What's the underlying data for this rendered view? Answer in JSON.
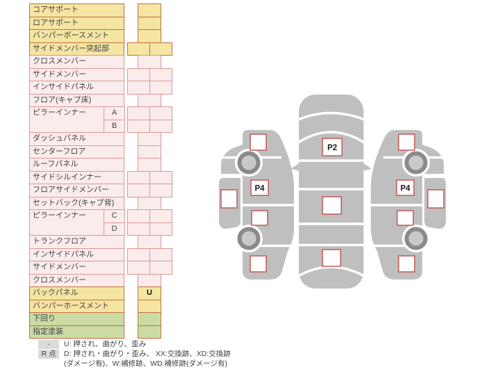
{
  "table": {
    "rows": [
      {
        "label": "コアサポート",
        "color": "yellow",
        "cells": "single",
        "value": ""
      },
      {
        "label": "ロアサポート",
        "color": "yellow",
        "cells": "single",
        "value": ""
      },
      {
        "label": "バンパーボースメント",
        "color": "yellow",
        "cells": "single",
        "value": ""
      },
      {
        "label": "サイドメンバー突起部",
        "color": "yellow",
        "cells": "double",
        "value": ""
      },
      {
        "label": "クロスメンバー",
        "color": "pink",
        "cells": "single",
        "value": ""
      },
      {
        "label": "サイドメンバー",
        "color": "pink",
        "cells": "double",
        "value": ""
      },
      {
        "label": "インサイドパネル",
        "color": "pink",
        "cells": "double",
        "value": ""
      },
      {
        "label": "フロア(キャブ床)",
        "color": "pink",
        "cells": "single",
        "value": ""
      },
      {
        "label": "ピラーインナー",
        "sub": "A",
        "span": 2,
        "color": "pink",
        "cells": "double",
        "value": ""
      },
      {
        "merged": true,
        "sub": "B",
        "color": "pink",
        "cells": "double",
        "value": ""
      },
      {
        "label": "ダッシュパネル",
        "color": "pink",
        "cells": "single",
        "value": ""
      },
      {
        "label": "センターフロア",
        "color": "pink",
        "cells": "single",
        "value": ""
      },
      {
        "label": "ルーフパネル",
        "color": "pink",
        "cells": "single",
        "value": ""
      },
      {
        "label": "サイドシルインナー",
        "color": "pink",
        "cells": "double",
        "value": ""
      },
      {
        "label": "フロアサイドメンバー",
        "color": "pink",
        "cells": "double",
        "value": ""
      },
      {
        "label": "セットバック(キャブ背)",
        "color": "pink",
        "cells": "single",
        "value": ""
      },
      {
        "label": "ピラーインナー",
        "sub": "C",
        "span": 2,
        "color": "pink",
        "cells": "double",
        "value": ""
      },
      {
        "merged": true,
        "sub": "D",
        "color": "pink",
        "cells": "double",
        "value": ""
      },
      {
        "label": "トランクフロア",
        "color": "pink",
        "cells": "single",
        "value": ""
      },
      {
        "label": "インサイドパネル",
        "color": "pink",
        "cells": "double",
        "value": ""
      },
      {
        "label": "サイドメンバー",
        "color": "pink",
        "cells": "double",
        "value": ""
      },
      {
        "label": "クロスメンバー",
        "color": "pink",
        "cells": "single",
        "value": ""
      },
      {
        "label": "バックパネル",
        "color": "yellow",
        "cells": "single",
        "value": "U"
      },
      {
        "label": "バンパーホースメント",
        "color": "yellow",
        "cells": "single",
        "value": ""
      },
      {
        "label": "下回り",
        "color": "green",
        "cells": "single",
        "value": ""
      },
      {
        "label": "指定塗装",
        "color": "green",
        "cells": "single",
        "value": ""
      }
    ]
  },
  "markers": {
    "top_view": "P2",
    "left_view": "P4",
    "right_view": "P4",
    "back_panel": "U"
  },
  "legend": {
    "rows": [
      {
        "badge": "-",
        "text": "U: 押され、曲がり、歪み"
      },
      {
        "badge": "R 点",
        "text": "D: 押され・曲がり・歪み、 XX:交換跡、XD:交換跡"
      },
      {
        "badge": "",
        "text": "(ダメージ有)、W:補修跡、WD:補修跡(ダメージ有)"
      }
    ]
  },
  "colors": {
    "yellow_bg": "#F5E5A3",
    "yellow_border": "#C2703E",
    "pink_bg": "#FBECEC",
    "pink_border": "#DA9694",
    "green_bg": "#CBDBA6",
    "green_border": "#C2703E",
    "badge_bg": "#DBDBDB",
    "car_body": "#BFBFBF",
    "marker_border": "#C0504D",
    "wheel_ring": "#8A8A8A",
    "wheel_hub": "#C9C9C9"
  }
}
